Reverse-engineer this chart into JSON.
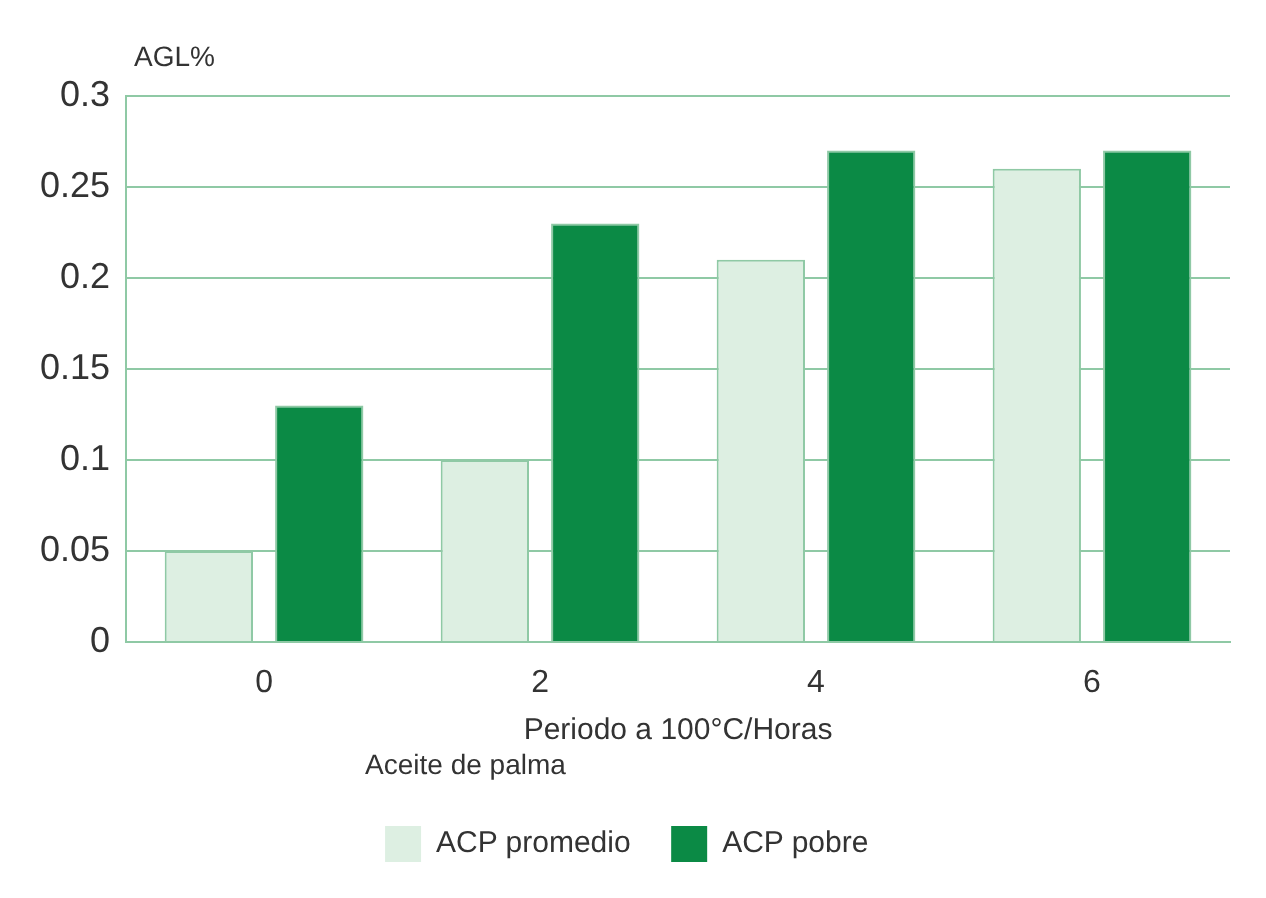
{
  "chart_data": {
    "type": "bar",
    "xlabel": "Periodo a 100°C/Horas",
    "ylabel": "AGL%",
    "legend_title": "Aceite de palma",
    "categories": [
      "0",
      "2",
      "4",
      "6"
    ],
    "series": [
      {
        "name": "ACP promedio",
        "color": "#ddefe2",
        "values": [
          0.05,
          0.1,
          0.21,
          0.26
        ]
      },
      {
        "name": "ACP pobre",
        "color": "#0b8a45",
        "values": [
          0.13,
          0.23,
          0.27,
          0.27
        ]
      }
    ],
    "ylim": [
      0,
      0.3
    ],
    "yticks": [
      0,
      0.05,
      0.1,
      0.15,
      0.2,
      0.25,
      0.3
    ],
    "grid": "y",
    "legend": "bottom"
  }
}
